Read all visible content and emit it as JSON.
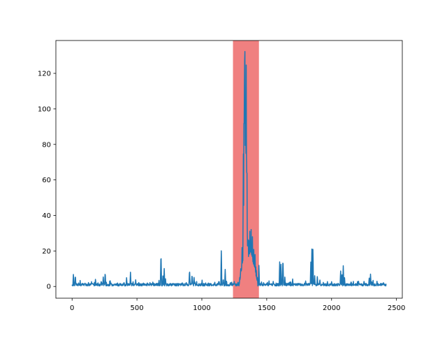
{
  "chart_data": {
    "type": "line",
    "title": "",
    "xlabel": "",
    "ylabel": "",
    "xlim": [
      -125,
      2545
    ],
    "ylim": [
      -6.6,
      138.5
    ],
    "grid": false,
    "legend": "none",
    "x_ticks": [
      {
        "value": 0,
        "label": "0"
      },
      {
        "value": 500,
        "label": "500"
      },
      {
        "value": 1000,
        "label": "1000"
      },
      {
        "value": 1500,
        "label": "1500"
      },
      {
        "value": 2000,
        "label": "2000"
      },
      {
        "value": 2500,
        "label": "2500"
      }
    ],
    "y_ticks": [
      {
        "value": 0,
        "label": "0"
      },
      {
        "value": 20,
        "label": "20"
      },
      {
        "value": 40,
        "label": "40"
      },
      {
        "value": 60,
        "label": "60"
      },
      {
        "value": 80,
        "label": "80"
      },
      {
        "value": 100,
        "label": "100"
      },
      {
        "value": 120,
        "label": "120"
      }
    ],
    "highlight_span": {
      "x_start": 1240,
      "x_end": 1440,
      "color": "#f08080"
    },
    "series": [
      {
        "color": "#1f77b4",
        "baseline": 1.0,
        "x_max": 2420,
        "peaks": [
          [
            10,
            7.2
          ],
          [
            25,
            6.8
          ],
          [
            50,
            2.0
          ],
          [
            100,
            1.8
          ],
          [
            150,
            2.0
          ],
          [
            180,
            4.5
          ],
          [
            200,
            2.5
          ],
          [
            225,
            3.5
          ],
          [
            240,
            5.5
          ],
          [
            255,
            8.0
          ],
          [
            300,
            1.8
          ],
          [
            350,
            1.7
          ],
          [
            400,
            2.5
          ],
          [
            420,
            4.5
          ],
          [
            450,
            8.0
          ],
          [
            470,
            3.0
          ],
          [
            490,
            4.0
          ],
          [
            550,
            2.0
          ],
          [
            600,
            1.8
          ],
          [
            650,
            2.0
          ],
          [
            670,
            3.0
          ],
          [
            685,
            19.5
          ],
          [
            700,
            6.0
          ],
          [
            710,
            10.0
          ],
          [
            720,
            4.0
          ],
          [
            780,
            2.0
          ],
          [
            850,
            2.5
          ],
          [
            880,
            2.0
          ],
          [
            905,
            10.0
          ],
          [
            925,
            7.0
          ],
          [
            940,
            5.0
          ],
          [
            960,
            3.0
          ],
          [
            1000,
            2.0
          ],
          [
            1050,
            2.0
          ],
          [
            1100,
            2.5
          ],
          [
            1130,
            3.0
          ],
          [
            1150,
            20.0
          ],
          [
            1165,
            5.0
          ],
          [
            1180,
            9.5
          ],
          [
            1190,
            3.0
          ],
          [
            1220,
            2.5
          ],
          [
            1250,
            3.0
          ],
          [
            1280,
            2.0
          ],
          [
            1300,
            10.0
          ],
          [
            1310,
            22.0
          ],
          [
            1320,
            75.0
          ],
          [
            1325,
            115.0
          ],
          [
            1332,
            132.0
          ],
          [
            1337,
            110.0
          ],
          [
            1342,
            125.0
          ],
          [
            1347,
            80.0
          ],
          [
            1355,
            30.0
          ],
          [
            1365,
            32.0
          ],
          [
            1370,
            31.0
          ],
          [
            1380,
            32.5
          ],
          [
            1390,
            28.0
          ],
          [
            1400,
            21.0
          ],
          [
            1410,
            18.0
          ],
          [
            1420,
            8.0
          ],
          [
            1440,
            11.5
          ],
          [
            1460,
            3.0
          ],
          [
            1500,
            2.0
          ],
          [
            1550,
            2.5
          ],
          [
            1600,
            14.0
          ],
          [
            1610,
            12.0
          ],
          [
            1625,
            16.0
          ],
          [
            1640,
            5.0
          ],
          [
            1680,
            2.5
          ],
          [
            1700,
            4.0
          ],
          [
            1750,
            2.0
          ],
          [
            1800,
            3.0
          ],
          [
            1840,
            14.0
          ],
          [
            1848,
            21.0
          ],
          [
            1856,
            21.0
          ],
          [
            1870,
            6.0
          ],
          [
            1890,
            5.5
          ],
          [
            1910,
            4.0
          ],
          [
            1950,
            2.0
          ],
          [
            2000,
            2.5
          ],
          [
            2050,
            2.0
          ],
          [
            2070,
            9.0
          ],
          [
            2080,
            7.0
          ],
          [
            2090,
            11.5
          ],
          [
            2100,
            5.0
          ],
          [
            2150,
            2.5
          ],
          [
            2200,
            2.0
          ],
          [
            2250,
            3.0
          ],
          [
            2290,
            5.0
          ],
          [
            2300,
            7.0
          ],
          [
            2320,
            3.0
          ],
          [
            2350,
            2.5
          ],
          [
            2400,
            2.0
          ]
        ],
        "hump": {
          "x_start": 1290,
          "x_end": 1430,
          "peak_x": 1330,
          "peak_y": 132.0
        }
      }
    ]
  }
}
